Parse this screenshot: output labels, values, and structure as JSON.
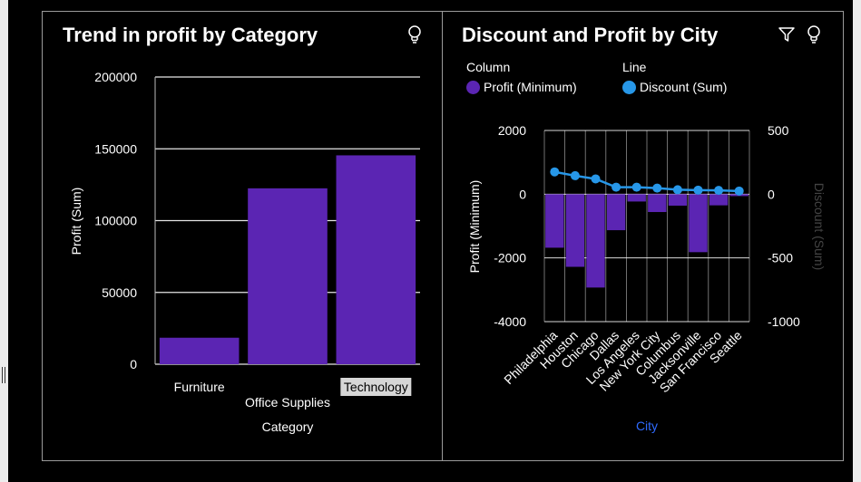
{
  "colors": {
    "bar": "#5b25b3",
    "line": "#2797e8",
    "background": "#000000",
    "text": "#ffffff",
    "grid": "#ffffff",
    "city_axis": "#2f6bff",
    "sec_axis": "#444444"
  },
  "icons": {
    "left_panel": [
      "lightbulb-icon"
    ],
    "right_panel": [
      "filter-icon",
      "lightbulb-icon"
    ]
  },
  "left": {
    "title": "Trend in profit by Category",
    "chart_data": {
      "type": "bar",
      "title": "Trend in profit by Category",
      "xlabel": "Category",
      "ylabel": "Profit (Sum)",
      "categories": [
        "Furniture",
        "Office Supplies",
        "Technology"
      ],
      "values": [
        18451,
        122491,
        145455
      ],
      "ylim": [
        0,
        200000
      ],
      "yticks": [
        "0",
        "50000",
        "100000",
        "150000",
        "200000"
      ],
      "grid": true
    }
  },
  "right": {
    "title": "Discount and Profit by City",
    "legend": {
      "column_head": "Column",
      "line_head": "Line",
      "column_item": "Profit (Minimum)",
      "line_item": "Discount (Sum)"
    },
    "chart_data": {
      "type": "bar",
      "title": "Discount and Profit by City",
      "xlabel": "City",
      "ylabel": "Profit (Minimum)",
      "y2label": "Discount (Sum)",
      "categories": [
        "Philadelphia",
        "Houston",
        "Chicago",
        "Dallas",
        "Los Angeles",
        "New York City",
        "Columbus",
        "Jacksonville",
        "San Francisco",
        "Seattle"
      ],
      "ylim": [
        -4000,
        2000
      ],
      "yticks": [
        "-4000",
        "-2000",
        "0",
        "2000"
      ],
      "y2lim": [
        -1000,
        500
      ],
      "y2ticks": [
        "-1000",
        "-500",
        "0",
        "500"
      ],
      "series": [
        {
          "name": "Profit (Minimum)",
          "type": "bar",
          "values": [
            -1680,
            -2280,
            -2930,
            -1130,
            -230,
            -560,
            -360,
            -1820,
            -350,
            -60
          ]
        },
        {
          "name": "Discount (Sum)",
          "type": "line",
          "values": [
            175,
            145,
            120,
            55,
            55,
            48,
            35,
            32,
            30,
            25
          ]
        }
      ],
      "legend_position": "top-left",
      "grid": true
    }
  }
}
